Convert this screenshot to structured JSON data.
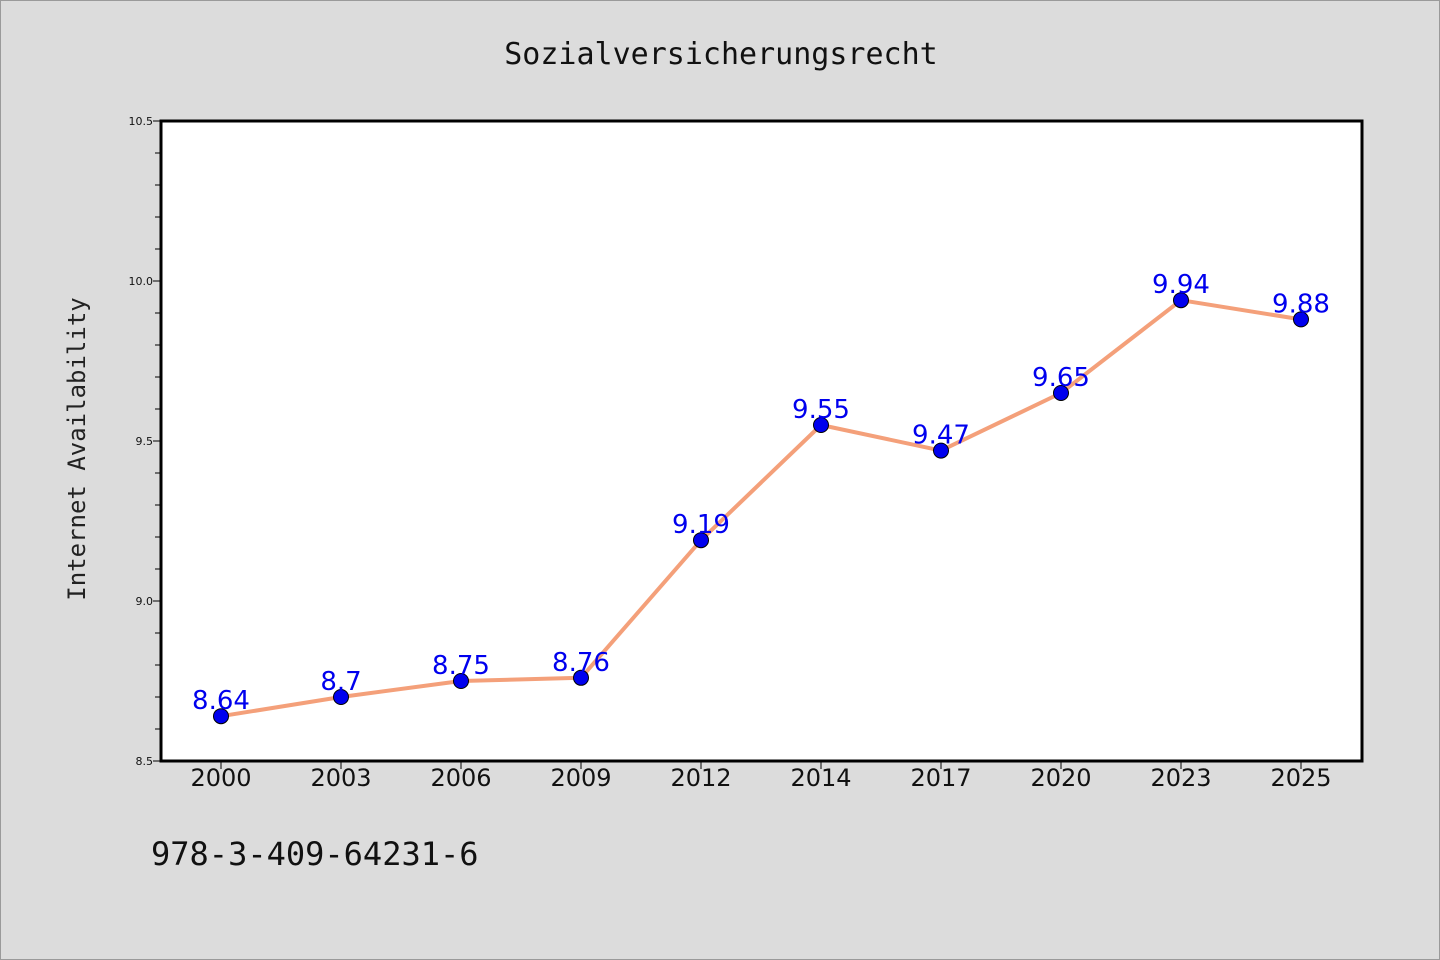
{
  "chart_data": {
    "type": "line",
    "title": "Sozialversicherungsrecht",
    "xlabel": "",
    "ylabel": "Internet Availability",
    "categories": [
      "2000",
      "2003",
      "2006",
      "2009",
      "2012",
      "2014",
      "2017",
      "2020",
      "2023",
      "2025"
    ],
    "series": [
      {
        "values": [
          8.64,
          8.7,
          8.75,
          8.76,
          9.19,
          9.55,
          9.47,
          9.65,
          9.94,
          9.88
        ],
        "labels": [
          "8.64",
          "8.7",
          "8.75",
          "8.76",
          "9.19",
          "9.55",
          "9.47",
          "9.65",
          "9.94",
          "9.88"
        ],
        "line_color": "#f4a07a",
        "marker_color": "#0000ee",
        "label_color": "#0000ee"
      }
    ],
    "ylim": [
      8.5,
      10.5
    ],
    "yticks": [
      "8.5",
      "9.0",
      "9.5",
      "10.0",
      "10.5"
    ],
    "grid": false,
    "legend": "none"
  },
  "footer": {
    "isbn": "978-3-409-64231-6"
  },
  "colors": {
    "background": "#dcdcdc",
    "plot_background": "#ffffff",
    "axis": "#000000"
  }
}
